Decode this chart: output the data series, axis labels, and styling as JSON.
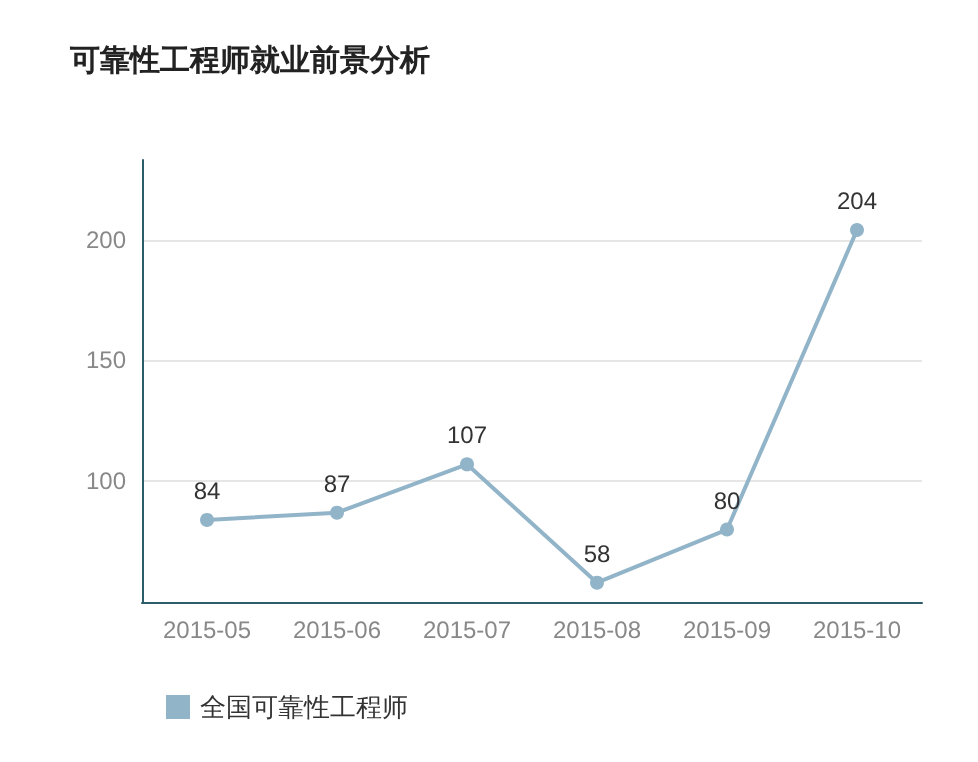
{
  "chart_data": {
    "type": "line",
    "title": "可靠性工程师就业前景分析",
    "categories": [
      "2015-05",
      "2015-06",
      "2015-07",
      "2015-08",
      "2015-09",
      "2015-10"
    ],
    "series": [
      {
        "name": "全国可靠性工程师",
        "color": "#92b4c8",
        "values": [
          84,
          87,
          107,
          58,
          80,
          204
        ]
      }
    ],
    "ylim": [
      50,
      233
    ],
    "yticks": [
      100,
      150,
      200
    ],
    "grid": "y",
    "legend": "bottom left",
    "marker": "circle",
    "data_labels": true
  }
}
